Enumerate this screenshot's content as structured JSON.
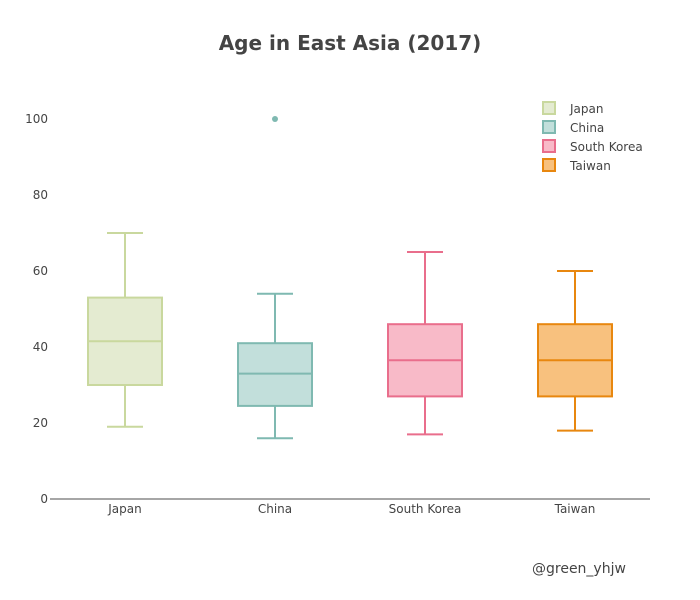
{
  "chart_data": {
    "type": "box",
    "title": "Age in East Asia (2017)",
    "xlabel": "",
    "ylabel": "",
    "ylim": [
      0,
      115
    ],
    "yticks": [
      0,
      20,
      40,
      60,
      80,
      100
    ],
    "categories": [
      "Japan",
      "China",
      "South Korea",
      "Taiwan"
    ],
    "series": [
      {
        "name": "Japan",
        "lowerfence": 19,
        "q1": 30,
        "median": 41.5,
        "q3": 53,
        "upperfence": 70,
        "outliers": [],
        "fill": "#e4ebd1",
        "stroke": "#c9d89e"
      },
      {
        "name": "China",
        "lowerfence": 16,
        "q1": 24.5,
        "median": 33,
        "q3": 41,
        "upperfence": 54,
        "outliers": [
          100
        ],
        "fill": "#c2dfdb",
        "stroke": "#7fb9b1"
      },
      {
        "name": "South Korea",
        "lowerfence": 17,
        "q1": 27,
        "median": 36.5,
        "q3": 46,
        "upperfence": 65,
        "outliers": [],
        "fill": "#f8bac8",
        "stroke": "#e96e8c"
      },
      {
        "name": "Taiwan",
        "lowerfence": 18,
        "q1": 27,
        "median": 36.5,
        "q3": 46,
        "upperfence": 60,
        "outliers": [],
        "fill": "#f8c17e",
        "stroke": "#e8870f"
      }
    ],
    "legend": [
      "Japan",
      "China",
      "South Korea",
      "Taiwan"
    ],
    "legend_position": "top-right",
    "grid": false
  },
  "credit": "@green_yhjw"
}
